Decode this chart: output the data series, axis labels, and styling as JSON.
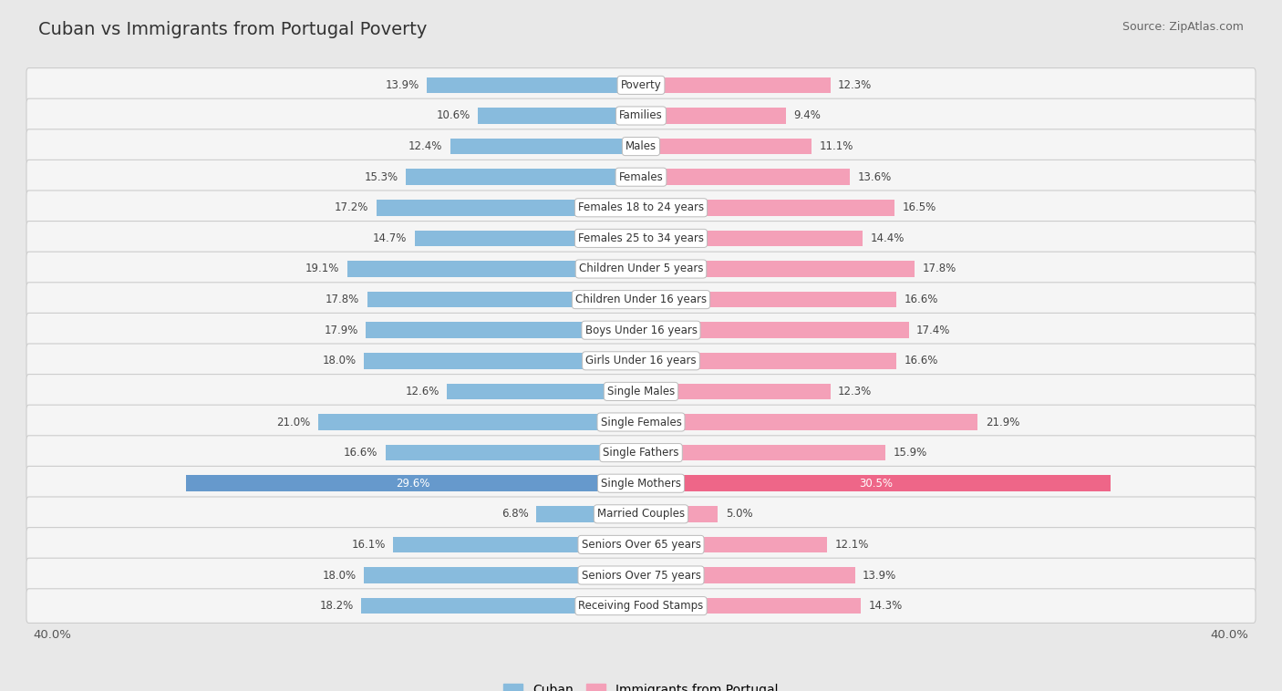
{
  "title": "Cuban vs Immigrants from Portugal Poverty",
  "source": "Source: ZipAtlas.com",
  "categories": [
    "Poverty",
    "Families",
    "Males",
    "Females",
    "Females 18 to 24 years",
    "Females 25 to 34 years",
    "Children Under 5 years",
    "Children Under 16 years",
    "Boys Under 16 years",
    "Girls Under 16 years",
    "Single Males",
    "Single Females",
    "Single Fathers",
    "Single Mothers",
    "Married Couples",
    "Seniors Over 65 years",
    "Seniors Over 75 years",
    "Receiving Food Stamps"
  ],
  "cuban_values": [
    13.9,
    10.6,
    12.4,
    15.3,
    17.2,
    14.7,
    19.1,
    17.8,
    17.9,
    18.0,
    12.6,
    21.0,
    16.6,
    29.6,
    6.8,
    16.1,
    18.0,
    18.2
  ],
  "portugal_values": [
    12.3,
    9.4,
    11.1,
    13.6,
    16.5,
    14.4,
    17.8,
    16.6,
    17.4,
    16.6,
    12.3,
    21.9,
    15.9,
    30.5,
    5.0,
    12.1,
    13.9,
    14.3
  ],
  "cuban_color": "#88bbdd",
  "portugal_color": "#f4a0b8",
  "single_mothers_cuban_color": "#6699cc",
  "single_mothers_portugal_color": "#ee6688",
  "axis_max": 40.0,
  "background_color": "#e8e8e8",
  "row_bg_color": "#f5f5f5",
  "row_border_color": "#cccccc",
  "label_color": "#444444",
  "value_color": "#444444",
  "legend_cuban": "Cuban",
  "legend_portugal": "Immigrants from Portugal",
  "title_fontsize": 14,
  "source_fontsize": 9,
  "bar_label_fontsize": 8.5,
  "value_fontsize": 8.5,
  "legend_fontsize": 10
}
